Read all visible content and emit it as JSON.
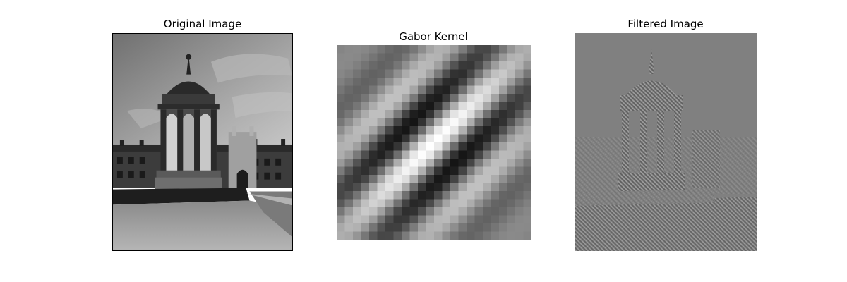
{
  "panels": [
    {
      "title": "Original Image",
      "content": "grayscale photograph of a stone fountain canopy in a college courtyard with buildings and lawn"
    },
    {
      "title": "Gabor Kernel",
      "content": "diagonal Gabor kernel pattern"
    },
    {
      "title": "Filtered Image",
      "content": "Gabor-filtered edge response of the photograph"
    }
  ],
  "gabor_kernel": {
    "size": 24,
    "orientation": "diagonal (lower-left to upper-right)"
  }
}
